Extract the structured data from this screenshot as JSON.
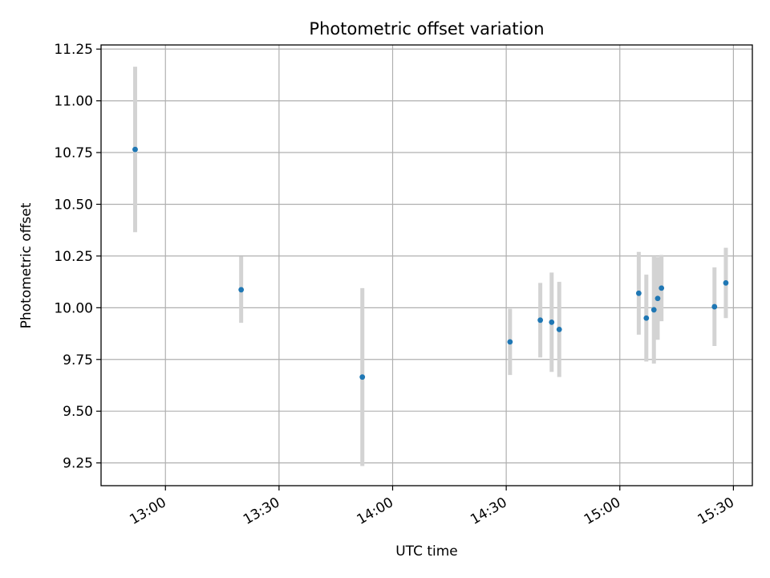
{
  "chart_data": {
    "type": "scatter",
    "title": "Photometric offset variation",
    "xlabel": "UTC time",
    "ylabel": "Photometric offset",
    "grid": true,
    "xlim": [
      "12:43",
      "15:35"
    ],
    "ylim": [
      9.14,
      11.27
    ],
    "x_ticks": [
      "13:00",
      "13:30",
      "14:00",
      "14:30",
      "15:00",
      "15:30"
    ],
    "y_ticks": [
      "9.25",
      "9.50",
      "9.75",
      "10.00",
      "10.25",
      "10.50",
      "10.75",
      "11.00",
      "11.25"
    ],
    "point_color": "#1f77b4",
    "errorbar_color": "#d3d3d3",
    "points": [
      {
        "x": "12:52",
        "y": 10.765,
        "err": 0.4
      },
      {
        "x": "13:20",
        "y": 10.087,
        "err": 0.16
      },
      {
        "x": "13:52",
        "y": 9.665,
        "err": 0.43
      },
      {
        "x": "14:31",
        "y": 9.835,
        "err": 0.16
      },
      {
        "x": "14:39",
        "y": 9.94,
        "err": 0.18
      },
      {
        "x": "14:42",
        "y": 9.93,
        "err": 0.24
      },
      {
        "x": "14:44",
        "y": 9.895,
        "err": 0.23
      },
      {
        "x": "15:05",
        "y": 10.07,
        "err": 0.2
      },
      {
        "x": "15:07",
        "y": 9.95,
        "err": 0.21
      },
      {
        "x": "15:09",
        "y": 9.99,
        "err": 0.26
      },
      {
        "x": "15:10",
        "y": 10.045,
        "err": 0.2
      },
      {
        "x": "15:11",
        "y": 10.095,
        "err": 0.16
      },
      {
        "x": "15:25",
        "y": 10.005,
        "err": 0.19
      },
      {
        "x": "15:28",
        "y": 10.12,
        "err": 0.17
      }
    ]
  }
}
